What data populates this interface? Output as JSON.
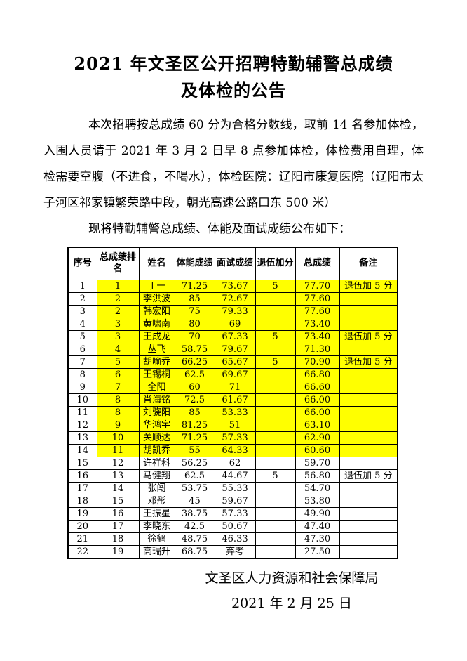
{
  "page": {
    "title_line1": "2021 年文圣区公开招聘特勤辅警总成绩",
    "title_line2": "及体检的公告",
    "paragraph": "本次招聘按总成绩 60 分为合格分数线，取前 14 名参加体检，入围人员请于 2021 年 3 月 2 日早 8 点参加体检，体检费用自理，体检需要空腹（不进食，不喝水），体检医院：辽阳市康复医院（辽阳市太子河区祁家镇繁荣路中段，朝光高速公路口东 500 米）",
    "table_intro": "现将特勤辅警总成绩、体能及面试成绩公布如下：",
    "signature": "文圣区人力资源和社会保障局",
    "date": "2021 年 2 月 25 日"
  },
  "table": {
    "highlight_color": "#FFFF00",
    "headers": [
      "序号",
      "总成绩排名",
      "姓名",
      "体能成绩",
      "面试成绩",
      "退伍加分",
      "总成绩",
      "备注"
    ],
    "rows": [
      {
        "highlight": true,
        "cells": [
          "1",
          "1",
          "丁一",
          "71.25",
          "73.67",
          "5",
          "77.70",
          "退伍加 5 分"
        ]
      },
      {
        "highlight": true,
        "cells": [
          "2",
          "2",
          "李洪波",
          "85",
          "72.67",
          "",
          "77.60",
          ""
        ]
      },
      {
        "highlight": true,
        "cells": [
          "3",
          "2",
          "韩宏阳",
          "75",
          "79.33",
          "",
          "77.60",
          ""
        ]
      },
      {
        "highlight": true,
        "cells": [
          "4",
          "3",
          "黄啸南",
          "80",
          "69",
          "",
          "73.40",
          ""
        ]
      },
      {
        "highlight": true,
        "cells": [
          "5",
          "3",
          "王成龙",
          "70",
          "67.33",
          "5",
          "73.40",
          "退伍加 5 分"
        ]
      },
      {
        "highlight": true,
        "cells": [
          "6",
          "4",
          "丛飞",
          "58.75",
          "79.67",
          "",
          "71.30",
          ""
        ]
      },
      {
        "highlight": true,
        "cells": [
          "7",
          "5",
          "胡喻乔",
          "66.25",
          "65.67",
          "5",
          "70.90",
          "退伍加 5 分"
        ]
      },
      {
        "highlight": true,
        "cells": [
          "8",
          "6",
          "王锡桐",
          "62.5",
          "69.67",
          "",
          "66.80",
          ""
        ]
      },
      {
        "highlight": true,
        "cells": [
          "9",
          "7",
          "全阳",
          "60",
          "71",
          "",
          "66.60",
          ""
        ]
      },
      {
        "highlight": true,
        "cells": [
          "10",
          "8",
          "肖海铭",
          "72.5",
          "61.67",
          "",
          "66.00",
          ""
        ]
      },
      {
        "highlight": true,
        "cells": [
          "11",
          "8",
          "刘骁阳",
          "85",
          "53.33",
          "",
          "66.00",
          ""
        ]
      },
      {
        "highlight": true,
        "cells": [
          "12",
          "9",
          "华鸿宇",
          "81.25",
          "51",
          "",
          "63.10",
          ""
        ]
      },
      {
        "highlight": true,
        "cells": [
          "13",
          "10",
          "关顺达",
          "71.25",
          "57.33",
          "",
          "62.90",
          ""
        ]
      },
      {
        "highlight": true,
        "cells": [
          "14",
          "11",
          "胡凯乔",
          "55",
          "64.33",
          "",
          "60.60",
          ""
        ]
      },
      {
        "highlight": false,
        "cells": [
          "15",
          "12",
          "许祥科",
          "56.25",
          "62",
          "",
          "59.70",
          ""
        ]
      },
      {
        "highlight": false,
        "cells": [
          "16",
          "13",
          "马健翔",
          "62.5",
          "44.67",
          "5",
          "56.80",
          "退伍加 5 分"
        ]
      },
      {
        "highlight": false,
        "cells": [
          "17",
          "14",
          "张闯",
          "53.75",
          "55.33",
          "",
          "54.70",
          ""
        ]
      },
      {
        "highlight": false,
        "cells": [
          "18",
          "15",
          "邓彤",
          "45",
          "59.67",
          "",
          "53.80",
          ""
        ]
      },
      {
        "highlight": false,
        "cells": [
          "19",
          "16",
          "王振星",
          "38.75",
          "57.33",
          "",
          "49.90",
          ""
        ]
      },
      {
        "highlight": false,
        "cells": [
          "20",
          "17",
          "李晓东",
          "42.5",
          "50.67",
          "",
          "47.40",
          ""
        ]
      },
      {
        "highlight": false,
        "cells": [
          "21",
          "18",
          "徐鹤",
          "48.75",
          "46.33",
          "",
          "47.30",
          ""
        ]
      },
      {
        "highlight": false,
        "cells": [
          "22",
          "19",
          "高瑞升",
          "68.75",
          "弃考",
          "",
          "27.50",
          ""
        ]
      }
    ]
  }
}
